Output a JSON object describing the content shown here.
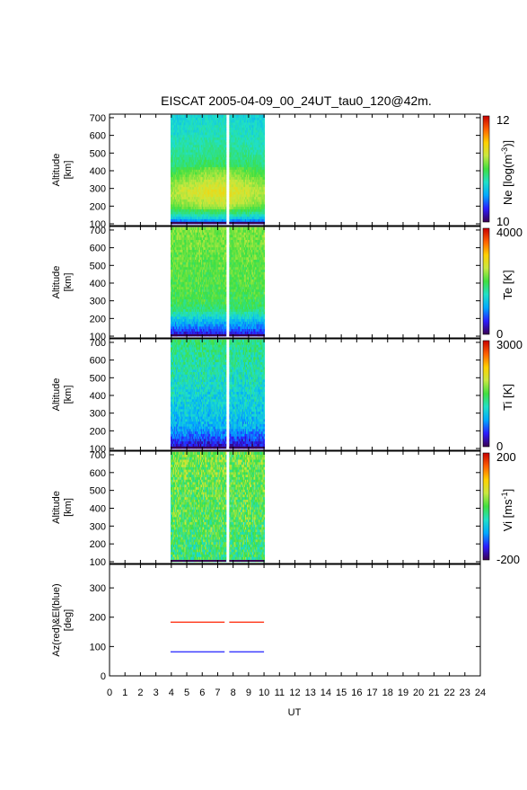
{
  "chart_data": {
    "type": "heatmap",
    "title": "EISCAT 2005-04-09_00_24UT_tau0_120@42m.",
    "xlabel": "UT",
    "xlim": [
      0,
      24
    ],
    "x_ticks": [
      "0",
      "1",
      "2",
      "3",
      "4",
      "5",
      "6",
      "7",
      "8",
      "9",
      "10",
      "11",
      "12",
      "13",
      "14",
      "15",
      "16",
      "17",
      "18",
      "19",
      "20",
      "21",
      "22",
      "23",
      "24"
    ],
    "data_segments_ut": [
      [
        3.95,
        7.55
      ],
      [
        7.75,
        10.0
      ]
    ],
    "colormap": [
      "#3a0050",
      "#2b1cff",
      "#00a8ff",
      "#20e0c8",
      "#40e040",
      "#c8e840",
      "#ffd000",
      "#ff6000",
      "#c80000"
    ],
    "panels": [
      {
        "ylabel": [
          "Altitude",
          "[km]"
        ],
        "ylim": [
          90,
          720
        ],
        "y_ticks": [
          "100",
          "200",
          "300",
          "400",
          "500",
          "600",
          "700"
        ],
        "y_tick_values": [
          100,
          200,
          300,
          400,
          500,
          600,
          700
        ],
        "colorbar": {
          "label": "Ne [log(m-3)]",
          "label_parts": [
            "Ne [log(m",
            "-3",
            ")]"
          ],
          "min": "10",
          "max": "12"
        },
        "profile": [
          [
            100,
            0.05
          ],
          [
            130,
            0.3
          ],
          [
            170,
            0.45
          ],
          [
            220,
            0.55
          ],
          [
            280,
            0.6
          ],
          [
            340,
            0.55
          ],
          [
            420,
            0.45
          ],
          [
            520,
            0.4
          ],
          [
            620,
            0.36
          ],
          [
            720,
            0.33
          ]
        ],
        "noise": 0.04
      },
      {
        "ylabel": [
          "Altitude",
          "[km]"
        ],
        "ylim": [
          90,
          720
        ],
        "y_ticks": [
          "100",
          "200",
          "300",
          "400",
          "500",
          "600",
          "700"
        ],
        "y_tick_values": [
          100,
          200,
          300,
          400,
          500,
          600,
          700
        ],
        "colorbar": {
          "label": "Te [K]",
          "label_parts": [
            "Te [K]"
          ],
          "min": "0",
          "max": "4000"
        },
        "profile": [
          [
            100,
            0.08
          ],
          [
            140,
            0.18
          ],
          [
            190,
            0.3
          ],
          [
            250,
            0.45
          ],
          [
            320,
            0.5
          ],
          [
            450,
            0.52
          ],
          [
            600,
            0.54
          ],
          [
            720,
            0.56
          ]
        ],
        "noise": 0.06
      },
      {
        "ylabel": [
          "Altitude",
          "[km]"
        ],
        "ylim": [
          90,
          720
        ],
        "y_ticks": [
          "100",
          "200",
          "300",
          "400",
          "500",
          "600",
          "700"
        ],
        "y_tick_values": [
          100,
          200,
          300,
          400,
          500,
          600,
          700
        ],
        "colorbar": {
          "label": "Ti [K]",
          "label_parts": [
            "Ti [K]"
          ],
          "min": "0",
          "max": "3000"
        },
        "profile": [
          [
            100,
            0.06
          ],
          [
            150,
            0.15
          ],
          [
            220,
            0.28
          ],
          [
            300,
            0.32
          ],
          [
            420,
            0.35
          ],
          [
            560,
            0.4
          ],
          [
            720,
            0.45
          ]
        ],
        "noise": 0.08
      },
      {
        "ylabel": [
          "Altitude",
          "[km]"
        ],
        "ylim": [
          90,
          720
        ],
        "y_ticks": [
          "100",
          "200",
          "300",
          "400",
          "500",
          "600",
          "700"
        ],
        "y_tick_values": [
          100,
          200,
          300,
          400,
          500,
          600,
          700
        ],
        "colorbar": {
          "label": "Vi [ms-1]",
          "label_parts": [
            "Vi [ms",
            "-1",
            "]"
          ],
          "min": "-200",
          "max": "200"
        },
        "profile": [
          [
            100,
            0.45
          ],
          [
            300,
            0.5
          ],
          [
            500,
            0.52
          ],
          [
            720,
            0.55
          ]
        ],
        "noise": 0.12
      },
      {
        "ylabel": [
          "Az(red)&El(blue)",
          "[deg]"
        ],
        "ylim": [
          0,
          380
        ],
        "y_ticks": [
          "0",
          "100",
          "200",
          "300"
        ],
        "y_tick_values": [
          0,
          100,
          200,
          300
        ],
        "lines": [
          {
            "name": "Az",
            "color": "#ff2000",
            "value": 183,
            "segments": [
              [
                3.95,
                7.45
              ],
              [
                7.75,
                10.0
              ]
            ]
          },
          {
            "name": "El",
            "color": "#2020ff",
            "value": 82,
            "segments": [
              [
                3.95,
                7.45
              ],
              [
                7.75,
                10.0
              ]
            ]
          }
        ]
      }
    ]
  }
}
